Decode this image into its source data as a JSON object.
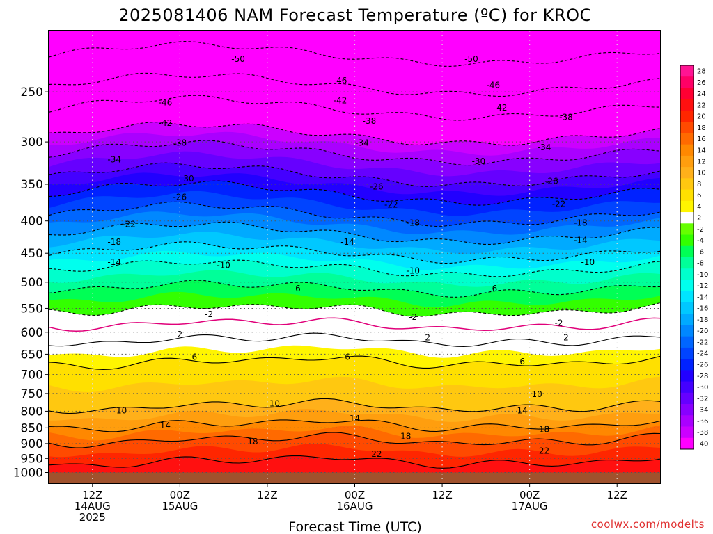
{
  "chart_data": {
    "type": "heatmap",
    "title": "2025081406 NAM Forecast Temperature (ºC) for KROC",
    "xlabel": "Forecast Time (UTC)",
    "credit": "coolwx.com/modelts",
    "y_scale": "log-pressure",
    "y_range_hpa": [
      1040,
      200
    ],
    "y_ticks": [
      250,
      300,
      350,
      400,
      450,
      500,
      550,
      600,
      650,
      700,
      750,
      800,
      850,
      900,
      950,
      1000
    ],
    "x_range_hours": [
      6,
      90
    ],
    "x_ticks": [
      {
        "hour": 12,
        "line1": "12Z",
        "line2": "14AUG",
        "line3": "2025"
      },
      {
        "hour": 24,
        "line1": "00Z",
        "line2": "15AUG",
        "line3": ""
      },
      {
        "hour": 36,
        "line1": "12Z",
        "line2": "",
        "line3": ""
      },
      {
        "hour": 48,
        "line1": "00Z",
        "line2": "16AUG",
        "line3": ""
      },
      {
        "hour": 60,
        "line1": "12Z",
        "line2": "",
        "line3": ""
      },
      {
        "hour": 72,
        "line1": "00Z",
        "line2": "17AUG",
        "line3": ""
      },
      {
        "hour": 84,
        "line1": "12Z",
        "line2": "",
        "line3": ""
      }
    ],
    "ground_below_hpa": 1000,
    "colorbar": {
      "labels": [
        "28",
        "26",
        "24",
        "22",
        "20",
        "18",
        "16",
        "14",
        "12",
        "10",
        "8",
        "6",
        "4",
        "2",
        "-2",
        "-4",
        "-6",
        "-8",
        "-10",
        "-12",
        "-14",
        "-16",
        "-18",
        "-20",
        "-22",
        "-24",
        "-26",
        "-28",
        "-30",
        "-32",
        "-34",
        "-36",
        "-38",
        "-40"
      ],
      "colors": [
        "#ff1493",
        "#ff0066",
        "#ff0033",
        "#ff1010",
        "#ff2600",
        "#ff4a00",
        "#ff6a00",
        "#ff8800",
        "#ff9e0e",
        "#ffb01a",
        "#ffc810",
        "#ffe000",
        "#fff500",
        "#ffffff",
        "#66ff00",
        "#33ff00",
        "#00ff55",
        "#00ff99",
        "#00ffcc",
        "#00ffee",
        "#00e5ff",
        "#00c8ff",
        "#00aaff",
        "#0088ff",
        "#0066ff",
        "#0044ff",
        "#0022ff",
        "#2200ff",
        "#4400ff",
        "#6600ff",
        "#8800ff",
        "#aa00ff",
        "#cc00ff",
        "#ff00ff"
      ]
    },
    "isotherms": [
      {
        "temp": 22,
        "base_hpa": 960
      },
      {
        "temp": 18,
        "base_hpa": 888
      },
      {
        "temp": 14,
        "base_hpa": 840
      },
      {
        "temp": 10,
        "base_hpa": 785
      },
      {
        "temp": 6,
        "base_hpa": 668
      },
      {
        "temp": 2,
        "base_hpa": 618
      },
      {
        "temp": 0,
        "base_hpa": 585
      },
      {
        "temp": -2,
        "base_hpa": 555
      },
      {
        "temp": -6,
        "base_hpa": 515
      },
      {
        "temp": -10,
        "base_hpa": 480
      },
      {
        "temp": -14,
        "base_hpa": 455
      },
      {
        "temp": -18,
        "base_hpa": 425
      },
      {
        "temp": -22,
        "base_hpa": 398
      },
      {
        "temp": -26,
        "base_hpa": 368
      },
      {
        "temp": -30,
        "base_hpa": 345
      },
      {
        "temp": -34,
        "base_hpa": 318
      },
      {
        "temp": -38,
        "base_hpa": 297
      },
      {
        "temp": -42,
        "base_hpa": 270
      },
      {
        "temp": -46,
        "base_hpa": 248
      },
      {
        "temp": -50,
        "base_hpa": 222
      }
    ],
    "contour_labels": [
      {
        "text": "-50",
        "hour": 32,
        "hpa": 222
      },
      {
        "text": "-50",
        "hour": 64,
        "hpa": 222
      },
      {
        "text": "-46",
        "hour": 46,
        "hpa": 240
      },
      {
        "text": "-46",
        "hour": 67,
        "hpa": 244
      },
      {
        "text": "-46",
        "hour": 22,
        "hpa": 260
      },
      {
        "text": "-42",
        "hour": 46,
        "hpa": 258
      },
      {
        "text": "-42",
        "hour": 22,
        "hpa": 280
      },
      {
        "text": "-42",
        "hour": 68,
        "hpa": 265
      },
      {
        "text": "-38",
        "hour": 50,
        "hpa": 278
      },
      {
        "text": "-38",
        "hour": 77,
        "hpa": 274
      },
      {
        "text": "-38",
        "hour": 24,
        "hpa": 301
      },
      {
        "text": "-34",
        "hour": 49,
        "hpa": 301
      },
      {
        "text": "-34",
        "hour": 74,
        "hpa": 306
      },
      {
        "text": "-34",
        "hour": 15,
        "hpa": 320
      },
      {
        "text": "-30",
        "hour": 65,
        "hpa": 322
      },
      {
        "text": "-30",
        "hour": 25,
        "hpa": 343
      },
      {
        "text": "-26",
        "hour": 51,
        "hpa": 353
      },
      {
        "text": "-26",
        "hour": 75,
        "hpa": 346
      },
      {
        "text": "-26",
        "hour": 24,
        "hpa": 367
      },
      {
        "text": "-22",
        "hour": 53,
        "hpa": 377
      },
      {
        "text": "-22",
        "hour": 76,
        "hpa": 376
      },
      {
        "text": "-22",
        "hour": 17,
        "hpa": 405
      },
      {
        "text": "-18",
        "hour": 56,
        "hpa": 403
      },
      {
        "text": "-18",
        "hour": 79,
        "hpa": 403
      },
      {
        "text": "-18",
        "hour": 15,
        "hpa": 432
      },
      {
        "text": "-14",
        "hour": 47,
        "hpa": 432
      },
      {
        "text": "-14",
        "hour": 79,
        "hpa": 429
      },
      {
        "text": "-14",
        "hour": 15,
        "hpa": 465
      },
      {
        "text": "-10",
        "hour": 30,
        "hpa": 470
      },
      {
        "text": "-10",
        "hour": 56,
        "hpa": 480
      },
      {
        "text": "-10",
        "hour": 80,
        "hpa": 465
      },
      {
        "text": "-6",
        "hour": 40,
        "hpa": 512
      },
      {
        "text": "-6",
        "hour": 67,
        "hpa": 512
      },
      {
        "text": "-2",
        "hour": 28,
        "hpa": 562
      },
      {
        "text": "-2",
        "hour": 56,
        "hpa": 568
      },
      {
        "text": "-2",
        "hour": 76,
        "hpa": 580
      },
      {
        "text": "2",
        "hour": 24,
        "hpa": 605
      },
      {
        "text": "2",
        "hour": 58,
        "hpa": 612
      },
      {
        "text": "2",
        "hour": 77,
        "hpa": 612
      },
      {
        "text": "6",
        "hour": 26,
        "hpa": 657
      },
      {
        "text": "6",
        "hour": 47,
        "hpa": 657
      },
      {
        "text": "6",
        "hour": 71,
        "hpa": 668
      },
      {
        "text": "10",
        "hour": 16,
        "hpa": 798
      },
      {
        "text": "10",
        "hour": 37,
        "hpa": 778
      },
      {
        "text": "10",
        "hour": 73,
        "hpa": 752
      },
      {
        "text": "14",
        "hour": 22,
        "hpa": 843
      },
      {
        "text": "14",
        "hour": 48,
        "hpa": 822
      },
      {
        "text": "14",
        "hour": 71,
        "hpa": 798
      },
      {
        "text": "18",
        "hour": 34,
        "hpa": 893
      },
      {
        "text": "18",
        "hour": 55,
        "hpa": 877
      },
      {
        "text": "18",
        "hour": 74,
        "hpa": 855
      },
      {
        "text": "22",
        "hour": 51,
        "hpa": 935
      },
      {
        "text": "22",
        "hour": 74,
        "hpa": 925
      }
    ]
  }
}
